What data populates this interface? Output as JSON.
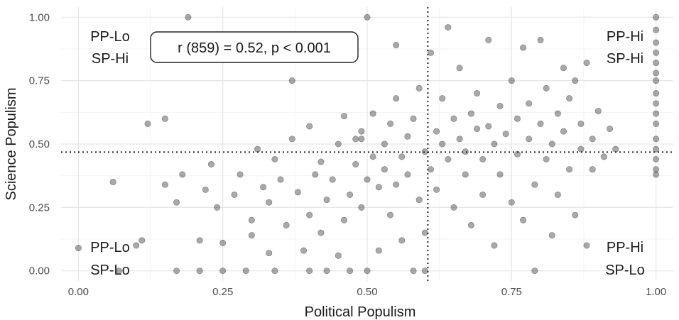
{
  "chart_data": {
    "type": "scatter",
    "xlabel": "Political Populism",
    "ylabel": "Science Populism",
    "xlim": [
      -0.03,
      1.03
    ],
    "ylim": [
      -0.04,
      1.04
    ],
    "x_ticks": [
      "0.00",
      "0.25",
      "0.50",
      "0.75",
      "1.00"
    ],
    "y_ticks": [
      "0.00",
      "0.25",
      "0.50",
      "0.75",
      "1.00"
    ],
    "grid": true,
    "point_color": "#333333",
    "reference_lines": {
      "x": 0.605,
      "y": 0.468
    },
    "annotation": "r (859) = 0.52, p < 0.001",
    "quadrant_labels": {
      "top_left": [
        "PP-Lo",
        "SP-Hi"
      ],
      "top_right": [
        "PP-Hi",
        "SP-Hi"
      ],
      "bottom_left": [
        "PP-Lo",
        "SP-Lo"
      ],
      "bottom_right": [
        "PP-Hi",
        "SP-Lo"
      ]
    },
    "points": [
      [
        0.0,
        0.09
      ],
      [
        0.06,
        0.35
      ],
      [
        0.07,
        0.0
      ],
      [
        0.1,
        0.1
      ],
      [
        0.11,
        0.12
      ],
      [
        0.12,
        0.58
      ],
      [
        0.15,
        0.6
      ],
      [
        0.15,
        0.34
      ],
      [
        0.17,
        0.0
      ],
      [
        0.17,
        0.27
      ],
      [
        0.18,
        0.38
      ],
      [
        0.19,
        1.0
      ],
      [
        0.21,
        0.12
      ],
      [
        0.21,
        0.0
      ],
      [
        0.22,
        0.32
      ],
      [
        0.23,
        0.42
      ],
      [
        0.24,
        0.25
      ],
      [
        0.25,
        0.11
      ],
      [
        0.25,
        0.0
      ],
      [
        0.27,
        0.3
      ],
      [
        0.28,
        0.38
      ],
      [
        0.29,
        0.0
      ],
      [
        0.3,
        0.2
      ],
      [
        0.3,
        0.14
      ],
      [
        0.31,
        0.48
      ],
      [
        0.32,
        0.33
      ],
      [
        0.33,
        0.07
      ],
      [
        0.33,
        0.27
      ],
      [
        0.34,
        0.0
      ],
      [
        0.34,
        0.44
      ],
      [
        0.35,
        0.36
      ],
      [
        0.36,
        0.18
      ],
      [
        0.37,
        0.75
      ],
      [
        0.37,
        0.52
      ],
      [
        0.38,
        0.31
      ],
      [
        0.39,
        0.08
      ],
      [
        0.4,
        0.57
      ],
      [
        0.4,
        0.22
      ],
      [
        0.4,
        0.0
      ],
      [
        0.41,
        0.38
      ],
      [
        0.42,
        0.15
      ],
      [
        0.42,
        0.43
      ],
      [
        0.43,
        0.0
      ],
      [
        0.43,
        0.28
      ],
      [
        0.44,
        0.87
      ],
      [
        0.44,
        0.36
      ],
      [
        0.45,
        0.5
      ],
      [
        0.45,
        0.06
      ],
      [
        0.46,
        0.2
      ],
      [
        0.46,
        0.61
      ],
      [
        0.47,
        0.3
      ],
      [
        0.47,
        0.0
      ],
      [
        0.48,
        0.42
      ],
      [
        0.48,
        0.52
      ],
      [
        0.49,
        0.55
      ],
      [
        0.49,
        0.52
      ],
      [
        0.49,
        0.25
      ],
      [
        0.5,
        1.0
      ],
      [
        0.5,
        0.36
      ],
      [
        0.5,
        0.0
      ],
      [
        0.51,
        0.45
      ],
      [
        0.51,
        0.62
      ],
      [
        0.52,
        0.33
      ],
      [
        0.52,
        0.08
      ],
      [
        0.53,
        0.5
      ],
      [
        0.53,
        0.4
      ],
      [
        0.54,
        0.58
      ],
      [
        0.54,
        0.22
      ],
      [
        0.55,
        0.34
      ],
      [
        0.55,
        0.68
      ],
      [
        0.55,
        0.89
      ],
      [
        0.56,
        0.45
      ],
      [
        0.56,
        0.12
      ],
      [
        0.57,
        0.53
      ],
      [
        0.57,
        0.38
      ],
      [
        0.58,
        0.0
      ],
      [
        0.58,
        0.6
      ],
      [
        0.59,
        0.28
      ],
      [
        0.59,
        0.72
      ],
      [
        0.6,
        0.47
      ],
      [
        0.6,
        0.0
      ],
      [
        0.6,
        0.15
      ],
      [
        0.61,
        0.86
      ],
      [
        0.61,
        0.4
      ],
      [
        0.62,
        0.55
      ],
      [
        0.62,
        0.32
      ],
      [
        0.63,
        0.5
      ],
      [
        0.63,
        0.68
      ],
      [
        0.64,
        0.44
      ],
      [
        0.64,
        0.96
      ],
      [
        0.65,
        0.6
      ],
      [
        0.65,
        0.25
      ],
      [
        0.66,
        0.52
      ],
      [
        0.66,
        0.8
      ],
      [
        0.67,
        0.38
      ],
      [
        0.67,
        0.47
      ],
      [
        0.68,
        0.62
      ],
      [
        0.68,
        0.18
      ],
      [
        0.69,
        0.56
      ],
      [
        0.69,
        0.7
      ],
      [
        0.7,
        0.44
      ],
      [
        0.7,
        0.3
      ],
      [
        0.71,
        0.91
      ],
      [
        0.71,
        0.57
      ],
      [
        0.72,
        0.5
      ],
      [
        0.72,
        0.1
      ],
      [
        0.73,
        0.65
      ],
      [
        0.73,
        0.38
      ],
      [
        0.74,
        0.54
      ],
      [
        0.75,
        0.75
      ],
      [
        0.75,
        0.27
      ],
      [
        0.76,
        0.6
      ],
      [
        0.76,
        0.46
      ],
      [
        0.77,
        0.88
      ],
      [
        0.77,
        0.2
      ],
      [
        0.78,
        0.52
      ],
      [
        0.78,
        0.66
      ],
      [
        0.79,
        0.34
      ],
      [
        0.79,
        0.0
      ],
      [
        0.8,
        0.58
      ],
      [
        0.8,
        0.91
      ],
      [
        0.81,
        0.44
      ],
      [
        0.81,
        0.72
      ],
      [
        0.82,
        0.14
      ],
      [
        0.82,
        0.5
      ],
      [
        0.83,
        0.62
      ],
      [
        0.83,
        0.3
      ],
      [
        0.84,
        0.8
      ],
      [
        0.84,
        0.55
      ],
      [
        0.85,
        0.4
      ],
      [
        0.85,
        0.68
      ],
      [
        0.86,
        0.22
      ],
      [
        0.86,
        0.75
      ],
      [
        0.87,
        0.48
      ],
      [
        0.87,
        0.58
      ],
      [
        0.88,
        0.1
      ],
      [
        0.88,
        0.82
      ],
      [
        0.89,
        0.52
      ],
      [
        0.89,
        0.4
      ],
      [
        0.9,
        0.63
      ],
      [
        0.91,
        0.45
      ],
      [
        0.92,
        0.56
      ],
      [
        0.93,
        0.48
      ],
      [
        1.0,
        1.0
      ],
      [
        1.0,
        0.95
      ],
      [
        1.0,
        0.9
      ],
      [
        1.0,
        0.86
      ],
      [
        1.0,
        0.82
      ],
      [
        1.0,
        0.78
      ],
      [
        1.0,
        0.75
      ],
      [
        1.0,
        0.7
      ],
      [
        1.0,
        0.66
      ],
      [
        1.0,
        0.62
      ],
      [
        1.0,
        0.58
      ],
      [
        1.0,
        0.52
      ],
      [
        1.0,
        0.48
      ],
      [
        1.0,
        0.44
      ],
      [
        1.0,
        0.4
      ],
      [
        1.0,
        0.38
      ]
    ]
  }
}
